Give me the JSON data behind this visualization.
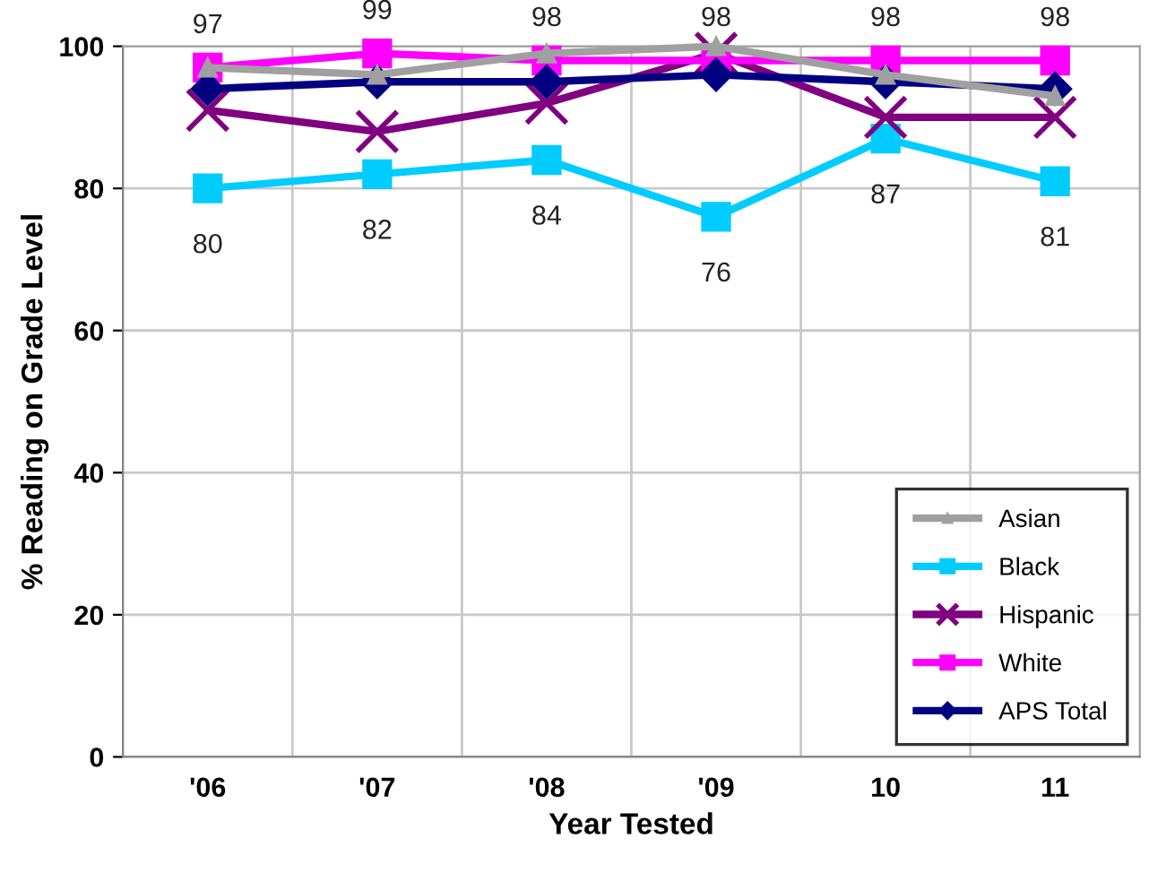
{
  "chart_data": {
    "type": "line",
    "xlabel": "Year Tested",
    "ylabel": "% Reading on Grade Level",
    "categories": [
      "'06",
      "'07",
      "'08",
      "'09",
      "10",
      "11"
    ],
    "series": [
      {
        "name": "Asian",
        "color": "#a0a0a0",
        "marker": "triangle",
        "values": [
          97,
          96,
          99,
          100,
          96,
          93
        ]
      },
      {
        "name": "Black",
        "color": "#00ccff",
        "marker": "square",
        "values": [
          80,
          82,
          84,
          76,
          87,
          81
        ],
        "value_labels": [
          "80",
          "82",
          "84",
          "76",
          "87",
          "81"
        ]
      },
      {
        "name": "Hispanic",
        "color": "#800080",
        "marker": "cross",
        "values": [
          91,
          88,
          92,
          99,
          90,
          90
        ]
      },
      {
        "name": "White",
        "color": "#ff00ff",
        "marker": "square",
        "values": [
          97,
          99,
          98,
          98,
          98,
          98
        ],
        "value_labels": [
          "97",
          "99",
          "98",
          "98",
          "98",
          "98"
        ]
      },
      {
        "name": "APS Total",
        "color": "#000080",
        "marker": "diamond",
        "values": [
          94,
          95,
          95,
          96,
          95,
          94
        ]
      }
    ],
    "ylim": [
      0,
      100
    ],
    "yticks": [
      0,
      20,
      40,
      60,
      80,
      100
    ],
    "grid": true,
    "legend": "bottom right",
    "line_style": "solid"
  }
}
